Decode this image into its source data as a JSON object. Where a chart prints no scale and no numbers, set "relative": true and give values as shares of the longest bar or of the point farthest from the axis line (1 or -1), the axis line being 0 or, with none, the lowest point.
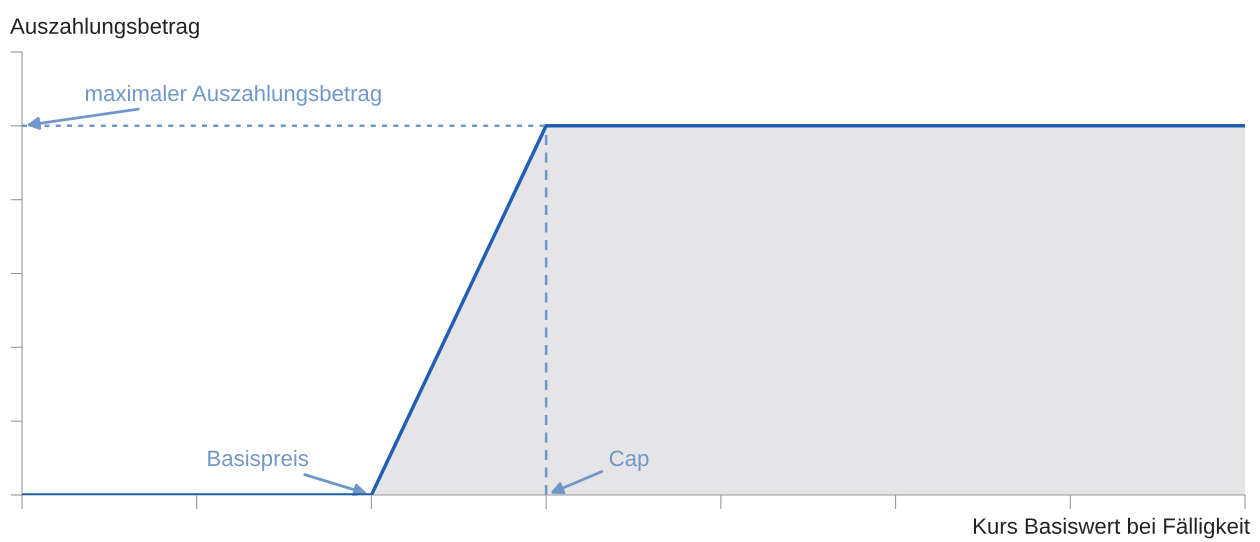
{
  "chart_data": {
    "type": "area",
    "relative": true,
    "xlabel": "Kurs Basiswert bei Fälligkeit",
    "ylabel": "Auszahlungsbetrag",
    "categories": [
      null,
      null,
      null,
      null,
      null,
      null,
      null,
      null
    ],
    "series": [
      {
        "color": "#1f5fb4",
        "values": [
          0,
          0,
          0,
          1,
          1,
          1,
          1,
          1
        ]
      }
    ],
    "ref_lines": [
      {
        "axis": "y",
        "value": 1,
        "label": "maximaler Auszahlungsbetrag",
        "color": "#6f98c8",
        "line_style": "dotted"
      }
    ],
    "annotations": [
      "Basispreis",
      "Cap"
    ],
    "marker": "none",
    "line_style": "solid"
  }
}
